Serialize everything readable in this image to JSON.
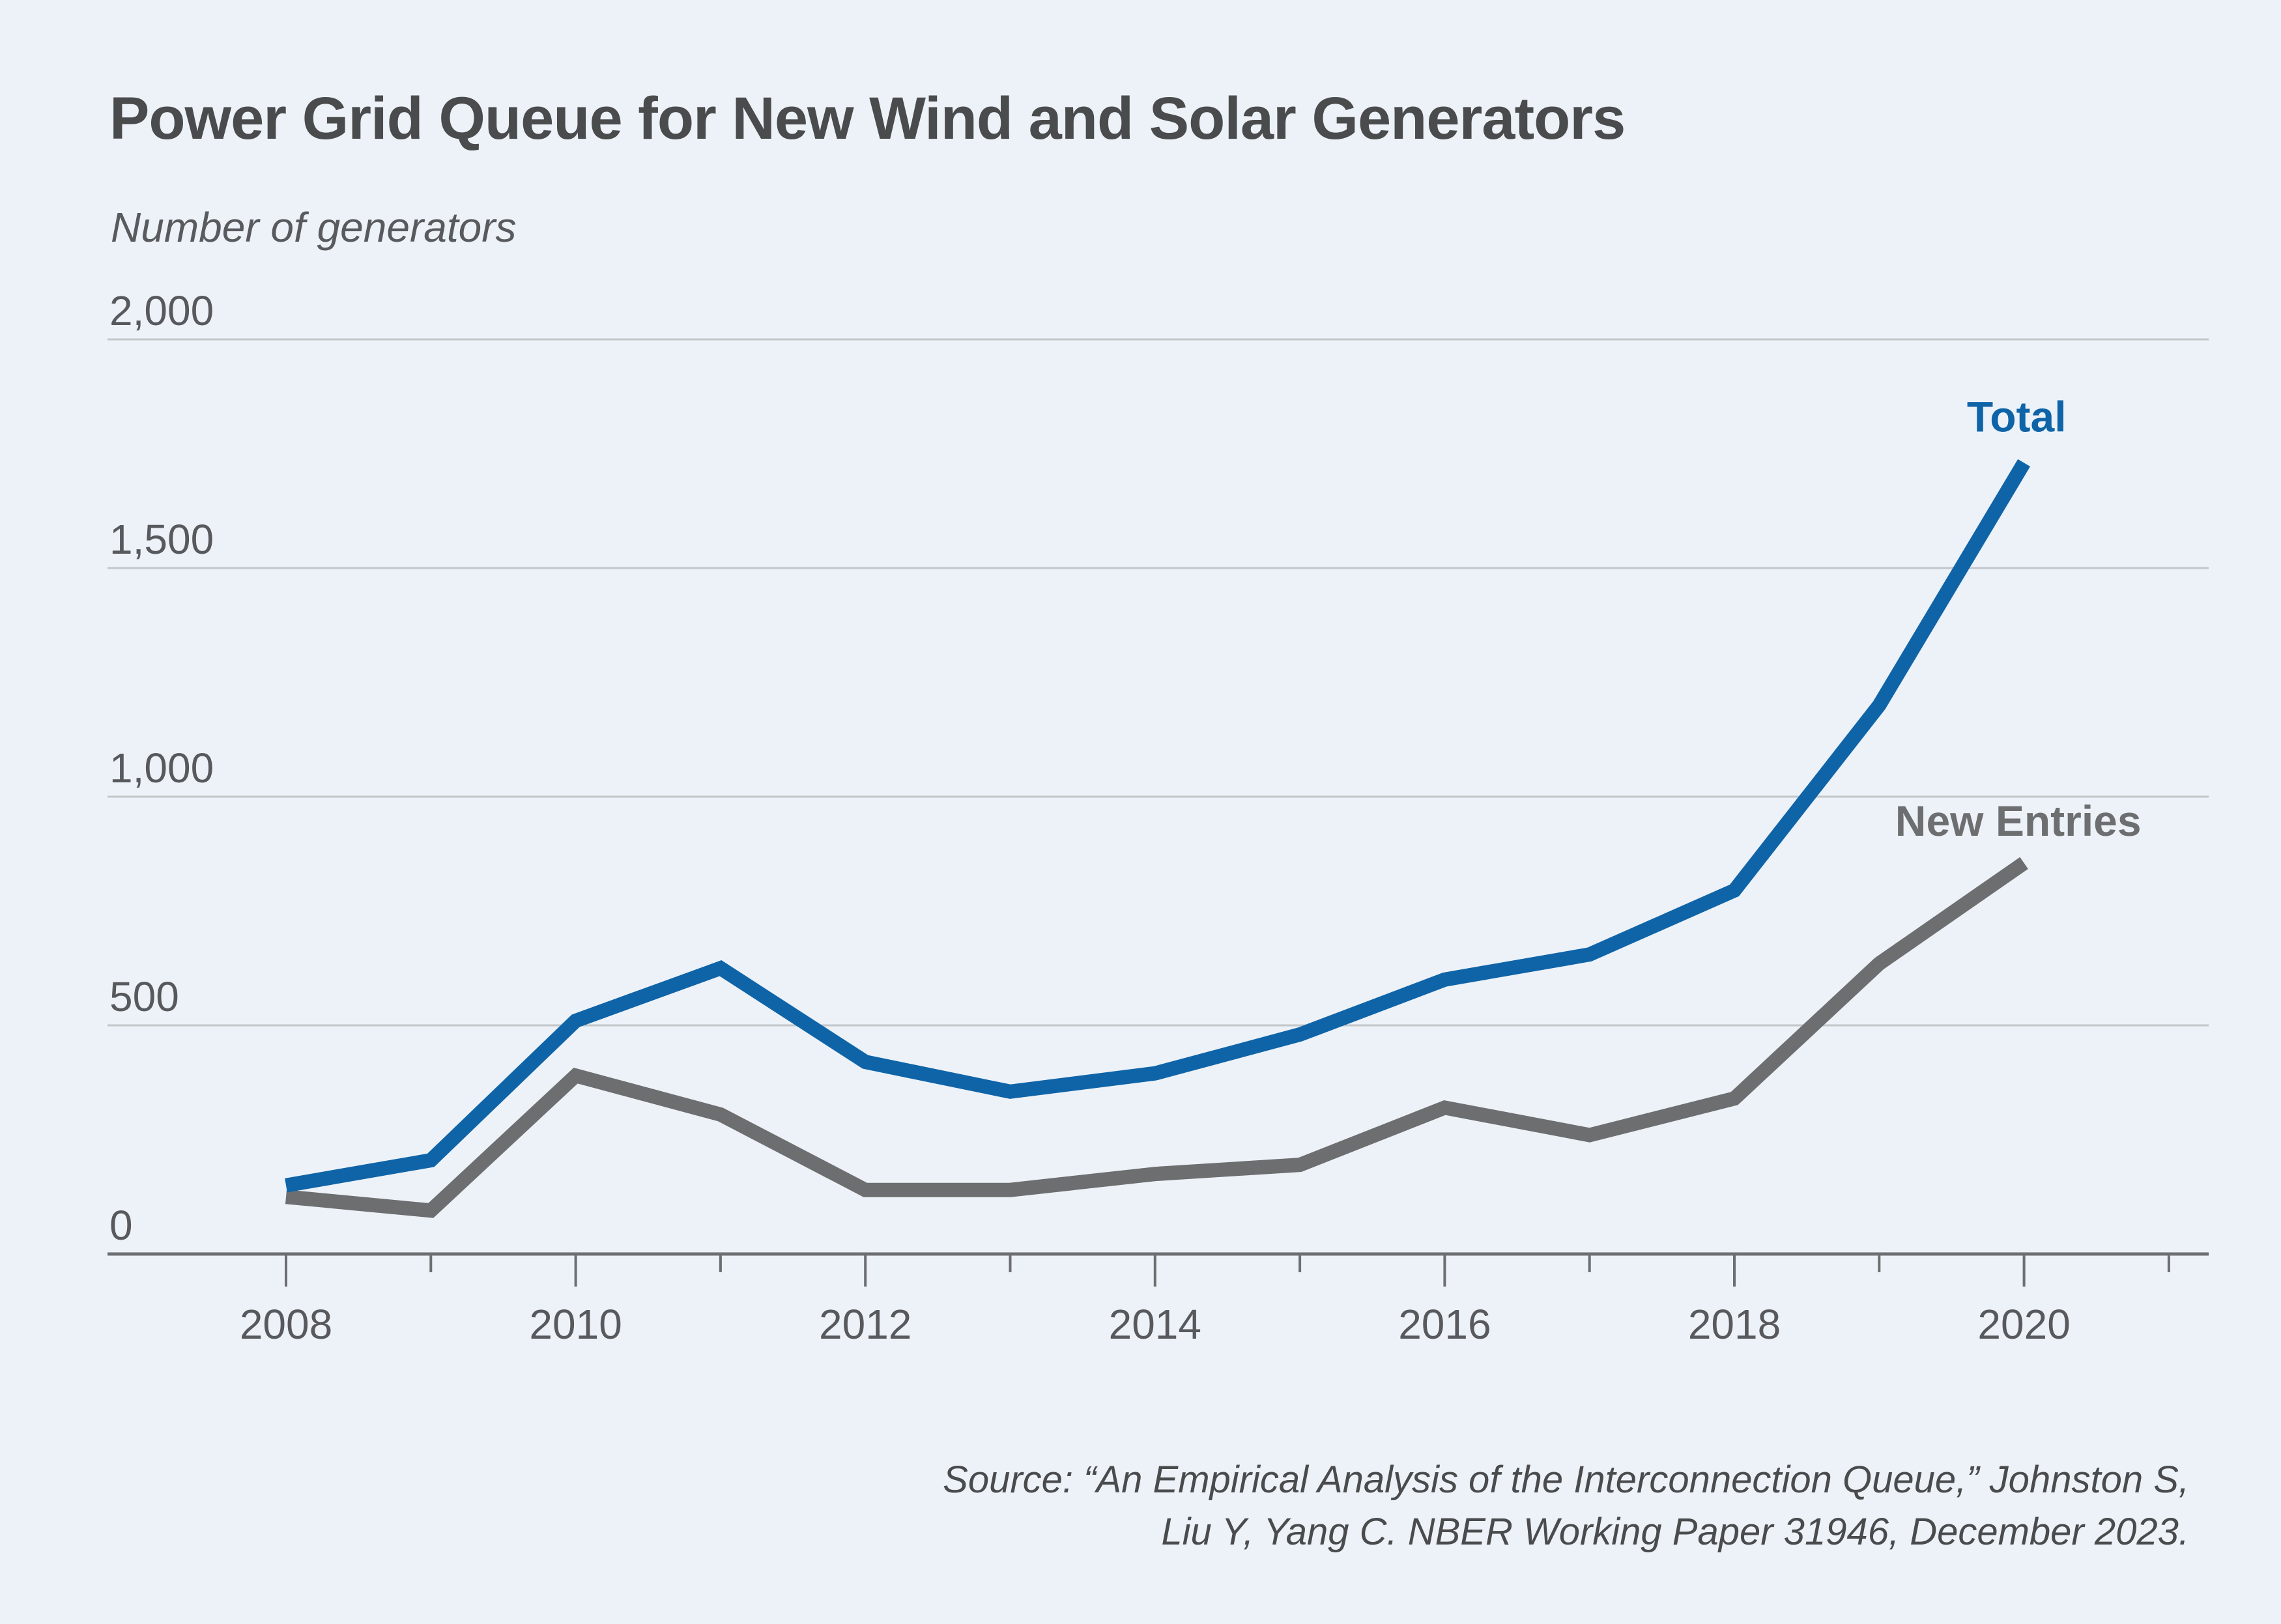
{
  "title": "Power Grid Queue for New Wind and Solar Generators",
  "y_axis_label": "Number of generators",
  "source": {
    "line1": "Source: “An Empirical Analysis of the Interconnection Queue,” Johnston S,",
    "line2": "Liu Y, Yang C. NBER Working Paper 31946, December 2023."
  },
  "colors": {
    "background": "#edf2f8",
    "total_line": "#0f64a8",
    "new_entries_line": "#6d6e70",
    "gridline": "#c4c7ca",
    "axis": "#6d6e71",
    "title_text": "#4a4b4d",
    "tick_text": "#58595c",
    "source_text": "#4a4b4d"
  },
  "chart_data": {
    "type": "line",
    "title": "Power Grid Queue for New Wind and Solar Generators",
    "ylabel": "Number of generators",
    "x": [
      2008,
      2009,
      2010,
      2011,
      2012,
      2013,
      2014,
      2015,
      2016,
      2017,
      2018,
      2019,
      2020
    ],
    "series": [
      {
        "name": "Total",
        "color_key": "total_line",
        "values": [
          150,
          205,
          510,
          625,
          420,
          355,
          395,
          480,
          600,
          655,
          795,
          1200,
          1730
        ]
      },
      {
        "name": "New Entries",
        "color_key": "new_entries_line",
        "values": [
          125,
          95,
          390,
          305,
          140,
          140,
          175,
          195,
          320,
          260,
          340,
          635,
          855
        ]
      }
    ],
    "ylim": [
      0,
      2000
    ],
    "yticks": [
      0,
      500,
      1000,
      1500,
      2000
    ],
    "ytick_labels": [
      "0",
      "500",
      "1,000",
      "1,500",
      "2,000"
    ],
    "xtick_label_years": [
      2008,
      2010,
      2012,
      2014,
      2016,
      2018,
      2020
    ],
    "xtick_minor_years": [
      2009,
      2011,
      2013,
      2015,
      2017,
      2019,
      2021
    ],
    "grid": true,
    "legend": {
      "total_label": "Total",
      "new_entries_label": "New Entries"
    }
  }
}
